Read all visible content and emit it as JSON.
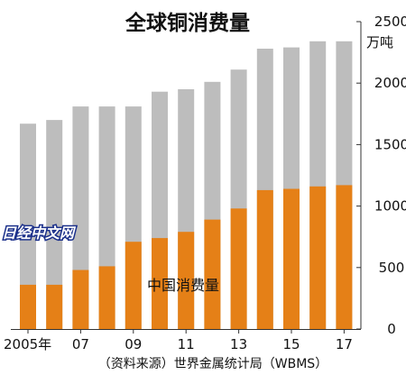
{
  "chart_data": {
    "type": "bar",
    "stacked": false,
    "overlay": true,
    "title": "全球铜消费量",
    "unit": "万吨",
    "categories": [
      "2005",
      "2006",
      "2007",
      "2008",
      "2009",
      "2010",
      "2011",
      "2012",
      "2013",
      "2014",
      "2015",
      "2016",
      "2017"
    ],
    "x_tick_labels": [
      "2005年",
      "07",
      "09",
      "11",
      "13",
      "15",
      "17"
    ],
    "series": [
      {
        "name": "",
        "color": "#bdbdbd",
        "values": [
          1670,
          1700,
          1810,
          1810,
          1810,
          1930,
          1950,
          2010,
          2110,
          2280,
          2290,
          2340,
          2340
        ]
      },
      {
        "name": "中国消费量",
        "color": "#e58017",
        "values": [
          360,
          360,
          480,
          510,
          710,
          740,
          790,
          890,
          980,
          1130,
          1140,
          1160,
          1170
        ]
      }
    ],
    "yticks": [
      "0",
      "500",
      "1000",
      "1500",
      "2000",
      "2500"
    ],
    "ylim": [
      0,
      2500
    ],
    "source": "（资料来源）世界金属统计局（WBMS）",
    "watermark": "日经中文网"
  }
}
